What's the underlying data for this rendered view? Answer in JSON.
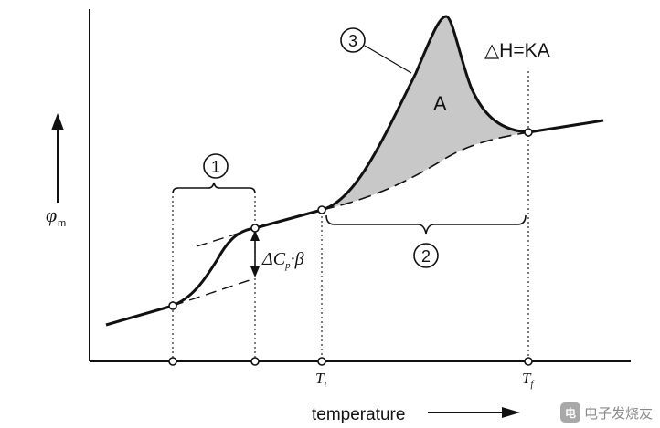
{
  "diagram": {
    "y_axis_label": "φ",
    "y_axis_subscript": "m",
    "x_axis_label": "temperature",
    "area_label": "A",
    "enthalpy_formula": "△H=KA",
    "step_formula_prefix": "ΔC",
    "step_formula_sub": "p",
    "step_formula_suffix": "·β",
    "tick_ti_main": "T",
    "tick_ti_sub": "i",
    "tick_tf_main": "T",
    "tick_tf_sub": "f",
    "markers": {
      "one": "1",
      "two": "2",
      "three": "3"
    },
    "colors": {
      "ink": "#111111",
      "peak_fill": "#c8c8c8",
      "background": "#ffffff"
    }
  },
  "watermark": {
    "text": "电子发烧友",
    "badge": "电"
  }
}
